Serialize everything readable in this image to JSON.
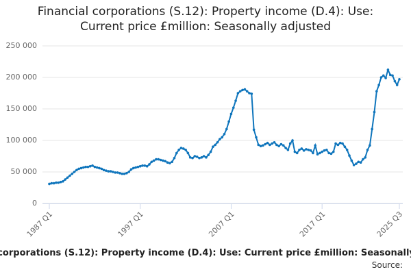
{
  "chart_data": {
    "type": "line",
    "title": "Financial corporations (S.12): Property income (D.4): Use: Current price £million: Seasonally adjusted",
    "source_label": "Source:",
    "color": "#0f75bc",
    "grid": true,
    "ylim": [
      0,
      250000
    ],
    "yticks": [
      0,
      {
        "value": 50000,
        "label": "50 000"
      },
      {
        "value": 100000,
        "label": "100 000"
      },
      {
        "value": 150000,
        "label": "150 000"
      },
      {
        "value": 200000,
        "label": "200 000"
      },
      {
        "value": 250000,
        "label": "250 000"
      }
    ],
    "categories": [
      "1987 Q1",
      null,
      null,
      null,
      null,
      null,
      null,
      null,
      null,
      null,
      null,
      null,
      null,
      null,
      null,
      null,
      null,
      null,
      null,
      null,
      null,
      null,
      null,
      null,
      null,
      null,
      null,
      null,
      null,
      null,
      null,
      null,
      null,
      null,
      null,
      null,
      null,
      null,
      null,
      null,
      "1997 Q1",
      null,
      null,
      null,
      null,
      null,
      null,
      null,
      null,
      null,
      null,
      null,
      null,
      null,
      null,
      null,
      null,
      null,
      null,
      null,
      null,
      null,
      null,
      null,
      null,
      null,
      null,
      null,
      null,
      null,
      null,
      null,
      null,
      null,
      null,
      null,
      null,
      null,
      null,
      null,
      "2007 Q1",
      null,
      null,
      null,
      null,
      null,
      null,
      null,
      null,
      null,
      null,
      null,
      null,
      null,
      null,
      null,
      null,
      null,
      null,
      null,
      null,
      null,
      null,
      null,
      null,
      null,
      null,
      null,
      null,
      null,
      null,
      null,
      null,
      null,
      null,
      null,
      null,
      null,
      null,
      null,
      "2017 Q1",
      null,
      null,
      null,
      null,
      null,
      null,
      null,
      null,
      null,
      null,
      null,
      null,
      null,
      null,
      null,
      null,
      null,
      null,
      null,
      null,
      null,
      null,
      null,
      null,
      null,
      null,
      null,
      null,
      null,
      null,
      null,
      null,
      null,
      "2025 Q3"
    ],
    "values": [
      31000,
      32000,
      32000,
      33000,
      33000,
      34000,
      35000,
      38000,
      41000,
      44000,
      47000,
      50000,
      53000,
      55000,
      56000,
      57000,
      58000,
      58000,
      59000,
      60000,
      58000,
      57000,
      56000,
      55000,
      53000,
      52000,
      51000,
      51000,
      50000,
      49000,
      49000,
      48000,
      47000,
      47000,
      48000,
      50000,
      54000,
      56000,
      57000,
      58000,
      59000,
      60000,
      60000,
      59000,
      62000,
      66000,
      68000,
      70000,
      70000,
      69000,
      68000,
      67000,
      65000,
      64000,
      66000,
      72000,
      80000,
      85000,
      88000,
      87000,
      85000,
      80000,
      73000,
      72000,
      75000,
      74000,
      72000,
      73000,
      75000,
      73000,
      77000,
      82000,
      90000,
      93000,
      97000,
      102000,
      105000,
      110000,
      118000,
      130000,
      142000,
      152000,
      163000,
      175000,
      178000,
      180000,
      181000,
      178000,
      175000,
      174000,
      117000,
      105000,
      93000,
      91000,
      92000,
      94000,
      96000,
      93000,
      95000,
      97000,
      93000,
      91000,
      94000,
      92000,
      88000,
      85000,
      95000,
      100000,
      82000,
      80000,
      85000,
      87000,
      84000,
      86000,
      85000,
      84000,
      80000,
      92000,
      78000,
      80000,
      82000,
      84000,
      85000,
      80000,
      79000,
      82000,
      95000,
      93000,
      96000,
      95000,
      90000,
      85000,
      76000,
      68000,
      61000,
      63000,
      66000,
      65000,
      70000,
      73000,
      85000,
      92000,
      118000,
      145000,
      178000,
      188000,
      200000,
      203000,
      199000,
      212000,
      204000,
      203000,
      194000,
      188000,
      197000
    ]
  }
}
